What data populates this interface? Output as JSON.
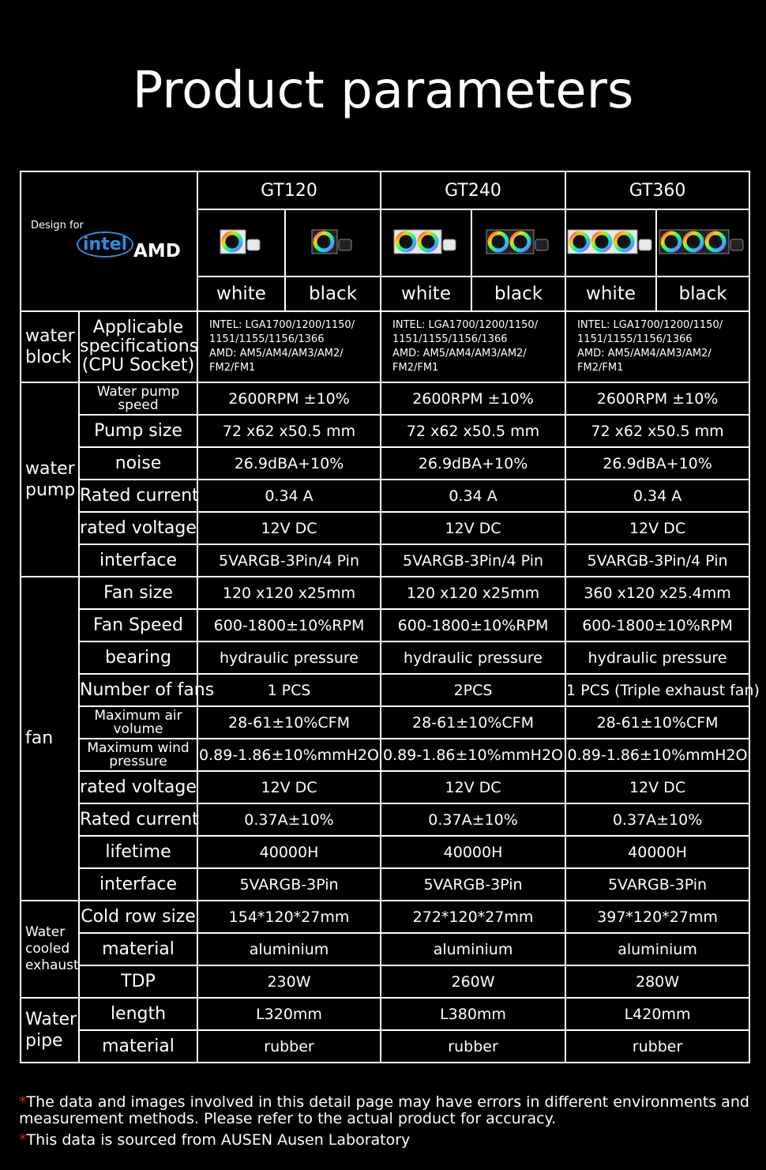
{
  "title": "Product parameters",
  "header": {
    "design_for": "Design for",
    "brands": [
      "intel",
      "AMD"
    ],
    "models": [
      "GT120",
      "GT240",
      "GT360"
    ],
    "colors": [
      "white",
      "black",
      "white",
      "black",
      "white",
      "black"
    ]
  },
  "groups": [
    {
      "label": "water block",
      "rows": [
        {
          "param": "Applicable specifications (CPU Socket)",
          "values": [
            "INTEL: LGA1700/1200/1150/\n1151/1155/1156/1366\nAMD: AM5/AM4/AM3/AM2/\nFM2/FM1",
            "INTEL: LGA1700/1200/1150/\n1151/1155/1156/1366\nAMD: AM5/AM4/AM3/AM2/\nFM2/FM1",
            "INTEL: LGA1700/1200/1150/\n1151/1155/1156/1366\nAMD: AM5/AM4/AM3/AM2/\nFM2/FM1"
          ]
        }
      ]
    },
    {
      "label": "water pump",
      "rows": [
        {
          "param": "Water pump speed",
          "values": [
            "2600RPM ±10%",
            "2600RPM ±10%",
            "2600RPM ±10%"
          ]
        },
        {
          "param": "Pump size",
          "values": [
            "72 x62 x50.5 mm",
            "72 x62 x50.5 mm",
            "72 x62 x50.5 mm"
          ]
        },
        {
          "param": "noise",
          "values": [
            "26.9dBA+10%",
            "26.9dBA+10%",
            "26.9dBA+10%"
          ]
        },
        {
          "param": "Rated current",
          "values": [
            "0.34 A",
            "0.34 A",
            "0.34 A"
          ]
        },
        {
          "param": "rated voltage",
          "values": [
            "12V DC",
            "12V DC",
            "12V DC"
          ]
        },
        {
          "param": "interface",
          "values": [
            "5VARGB-3Pin/4 Pin",
            "5VARGB-3Pin/4 Pin",
            "5VARGB-3Pin/4 Pin"
          ]
        }
      ]
    },
    {
      "label": "fan",
      "rows": [
        {
          "param": "Fan size",
          "values": [
            "120 x120 x25mm",
            "120 x120 x25mm",
            "360 x120 x25.4mm"
          ]
        },
        {
          "param": "Fan Speed",
          "values": [
            "600-1800±10%RPM",
            "600-1800±10%RPM",
            "600-1800±10%RPM"
          ]
        },
        {
          "param": "bearing",
          "values": [
            "hydraulic pressure",
            "hydraulic pressure",
            "hydraulic pressure"
          ]
        },
        {
          "param": "Number of fans",
          "values": [
            "1 PCS",
            "2PCS",
            "1 PCS  (Triple exhaust fan)"
          ]
        },
        {
          "param": "Maximum air volume",
          "values": [
            "28-61±10%CFM",
            "28-61±10%CFM",
            "28-61±10%CFM"
          ]
        },
        {
          "param": "Maximum wind pressure",
          "values": [
            "0.89-1.86±10%mmH2O",
            "0.89-1.86±10%mmH2O",
            "0.89-1.86±10%mmH2O"
          ]
        },
        {
          "param": "rated voltage",
          "values": [
            "12V DC",
            "12V DC",
            "12V DC"
          ]
        },
        {
          "param": "Rated current",
          "values": [
            "0.37A±10%",
            "0.37A±10%",
            "0.37A±10%"
          ]
        },
        {
          "param": "lifetime",
          "values": [
            "40000H",
            "40000H",
            "40000H"
          ]
        },
        {
          "param": "interface",
          "values": [
            "5VARGB-3Pin",
            "5VARGB-3Pin",
            "5VARGB-3Pin"
          ]
        }
      ]
    },
    {
      "label": "Water cooled exhaust",
      "rows": [
        {
          "param": "Cold row size",
          "values": [
            "154*120*27mm",
            "272*120*27mm",
            "397*120*27mm"
          ]
        },
        {
          "param": "material",
          "values": [
            "aluminium",
            "aluminium",
            "aluminium"
          ]
        },
        {
          "param": "TDP",
          "values": [
            "230W",
            "260W",
            "280W"
          ]
        }
      ]
    },
    {
      "label": "Water pipe",
      "rows": [
        {
          "param": "length",
          "values": [
            "L320mm",
            "L380mm",
            "L420mm"
          ]
        },
        {
          "param": "material",
          "values": [
            "rubber",
            "rubber",
            "rubber"
          ]
        }
      ]
    }
  ],
  "notes": [
    {
      "mark": "*",
      "text": "The data and images involved in this detail page may have errors in different environments and\n measurement methods. Please refer to the actual product for accuracy."
    },
    {
      "mark": "*",
      "text": "This data is sourced from AUSEN Ausen Laboratory"
    }
  ]
}
